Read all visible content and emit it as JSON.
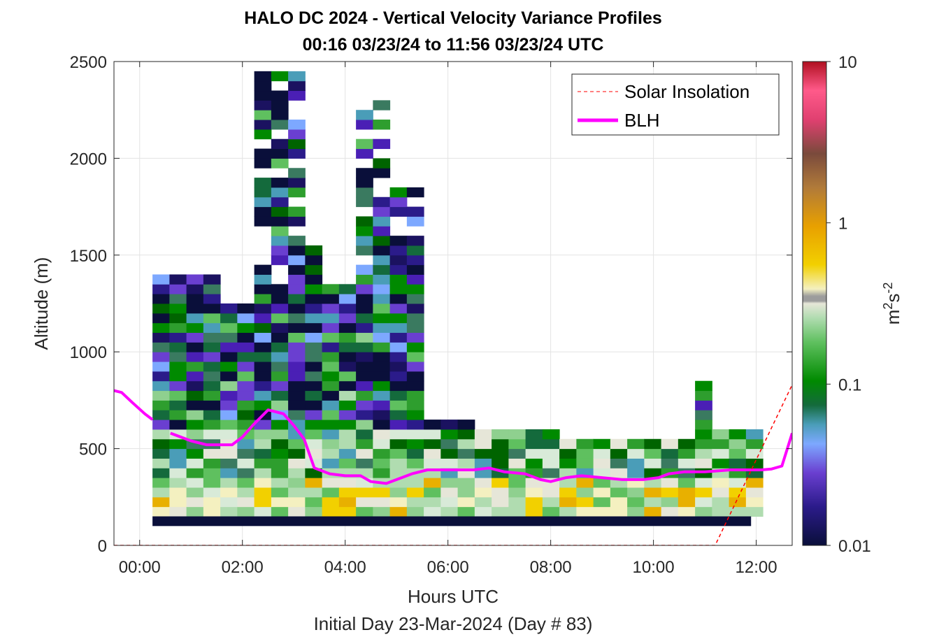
{
  "chart_data": {
    "type": "heatmap",
    "title_line1": "HALO DC 2024 - Vertical Velocity Variance Profiles",
    "title_line2": "00:16 03/23/24 to 11:56 03/23/24  UTC",
    "xlabel": "Hours UTC",
    "xlabel2": "Initial Day 23-Mar-2024 (Day # 83)",
    "ylabel": "Altitude (m)",
    "colorbar_label_base": "m",
    "colorbar_label_sup1": "2",
    "colorbar_label_mid": "s",
    "colorbar_label_sup2": "-2",
    "xlim_hours": [
      -0.5,
      12.7
    ],
    "ylim": [
      0,
      2500
    ],
    "x_ticks": [
      {
        "value": 0,
        "label": "00:00"
      },
      {
        "value": 2,
        "label": "02:00"
      },
      {
        "value": 4,
        "label": "04:00"
      },
      {
        "value": 6,
        "label": "06:00"
      },
      {
        "value": 8,
        "label": "08:00"
      },
      {
        "value": 10,
        "label": "10:00"
      },
      {
        "value": 12,
        "label": "12:00"
      }
    ],
    "y_ticks": [
      {
        "value": 0,
        "label": "0"
      },
      {
        "value": 500,
        "label": "500"
      },
      {
        "value": 1000,
        "label": "1000"
      },
      {
        "value": 1500,
        "label": "1500"
      },
      {
        "value": 2000,
        "label": "2000"
      },
      {
        "value": 2500,
        "label": "2500"
      }
    ],
    "colorbar": {
      "scale": "log",
      "range": [
        0.01,
        10
      ],
      "ticks": [
        {
          "value": 0.01,
          "label": "0.01"
        },
        {
          "value": 0.1,
          "label": "0.1"
        },
        {
          "value": 1,
          "label": "1"
        },
        {
          "value": 10,
          "label": "10"
        }
      ]
    },
    "grid": true,
    "legend_placement": "top-right",
    "legend": [
      {
        "name": "Solar Insolation",
        "style": "dashed",
        "color": "#ff0000"
      },
      {
        "name": "BLH",
        "style": "solid",
        "color": "#ff00ff"
      }
    ],
    "series": [
      {
        "name": "BLH",
        "color": "#ff00ff",
        "segments": [
          [
            [
              -0.5,
              800
            ],
            [
              -0.35,
              790
            ],
            [
              -0.15,
              740
            ],
            [
              0.1,
              680
            ],
            [
              0.25,
              650
            ]
          ],
          [
            [
              0.6,
              580
            ],
            [
              1.0,
              540
            ],
            [
              1.3,
              520
            ],
            [
              1.6,
              520
            ],
            [
              1.8,
              520
            ],
            [
              2.0,
              560
            ],
            [
              2.2,
              620
            ],
            [
              2.5,
              700
            ],
            [
              2.8,
              680
            ],
            [
              3.0,
              620
            ],
            [
              3.2,
              550
            ],
            [
              3.4,
              400
            ],
            [
              3.7,
              370
            ],
            [
              4.0,
              360
            ],
            [
              4.3,
              360
            ],
            [
              4.5,
              330
            ],
            [
              4.8,
              320
            ],
            [
              5.0,
              340
            ],
            [
              5.3,
              370
            ],
            [
              5.6,
              390
            ],
            [
              6.0,
              390
            ],
            [
              6.5,
              390
            ],
            [
              6.8,
              400
            ],
            [
              7.1,
              380
            ],
            [
              7.5,
              370
            ],
            [
              7.8,
              340
            ],
            [
              8.0,
              330
            ],
            [
              8.3,
              350
            ],
            [
              8.6,
              360
            ],
            [
              9.0,
              350
            ],
            [
              9.4,
              340
            ],
            [
              9.8,
              340
            ],
            [
              10.1,
              350
            ],
            [
              10.3,
              370
            ],
            [
              10.6,
              380
            ],
            [
              11.0,
              380
            ],
            [
              11.5,
              390
            ],
            [
              11.8,
              390
            ],
            [
              12.1,
              390
            ],
            [
              12.3,
              395
            ],
            [
              12.5,
              410
            ],
            [
              12.7,
              580
            ]
          ]
        ]
      },
      {
        "name": "Solar Insolation",
        "color": "#ff0000",
        "values": [
          [
            -0.5,
            0
          ],
          [
            11.2,
            0
          ],
          [
            12.7,
            830
          ]
        ]
      }
    ],
    "heatmap_summary": {
      "cell_width_hours": 0.33,
      "cell_height_m": 50,
      "x_start": 0.25,
      "x_end": 11.9,
      "surface_layer": {
        "y_from": 100,
        "y_to": 150,
        "value": 0.01
      }
    }
  }
}
